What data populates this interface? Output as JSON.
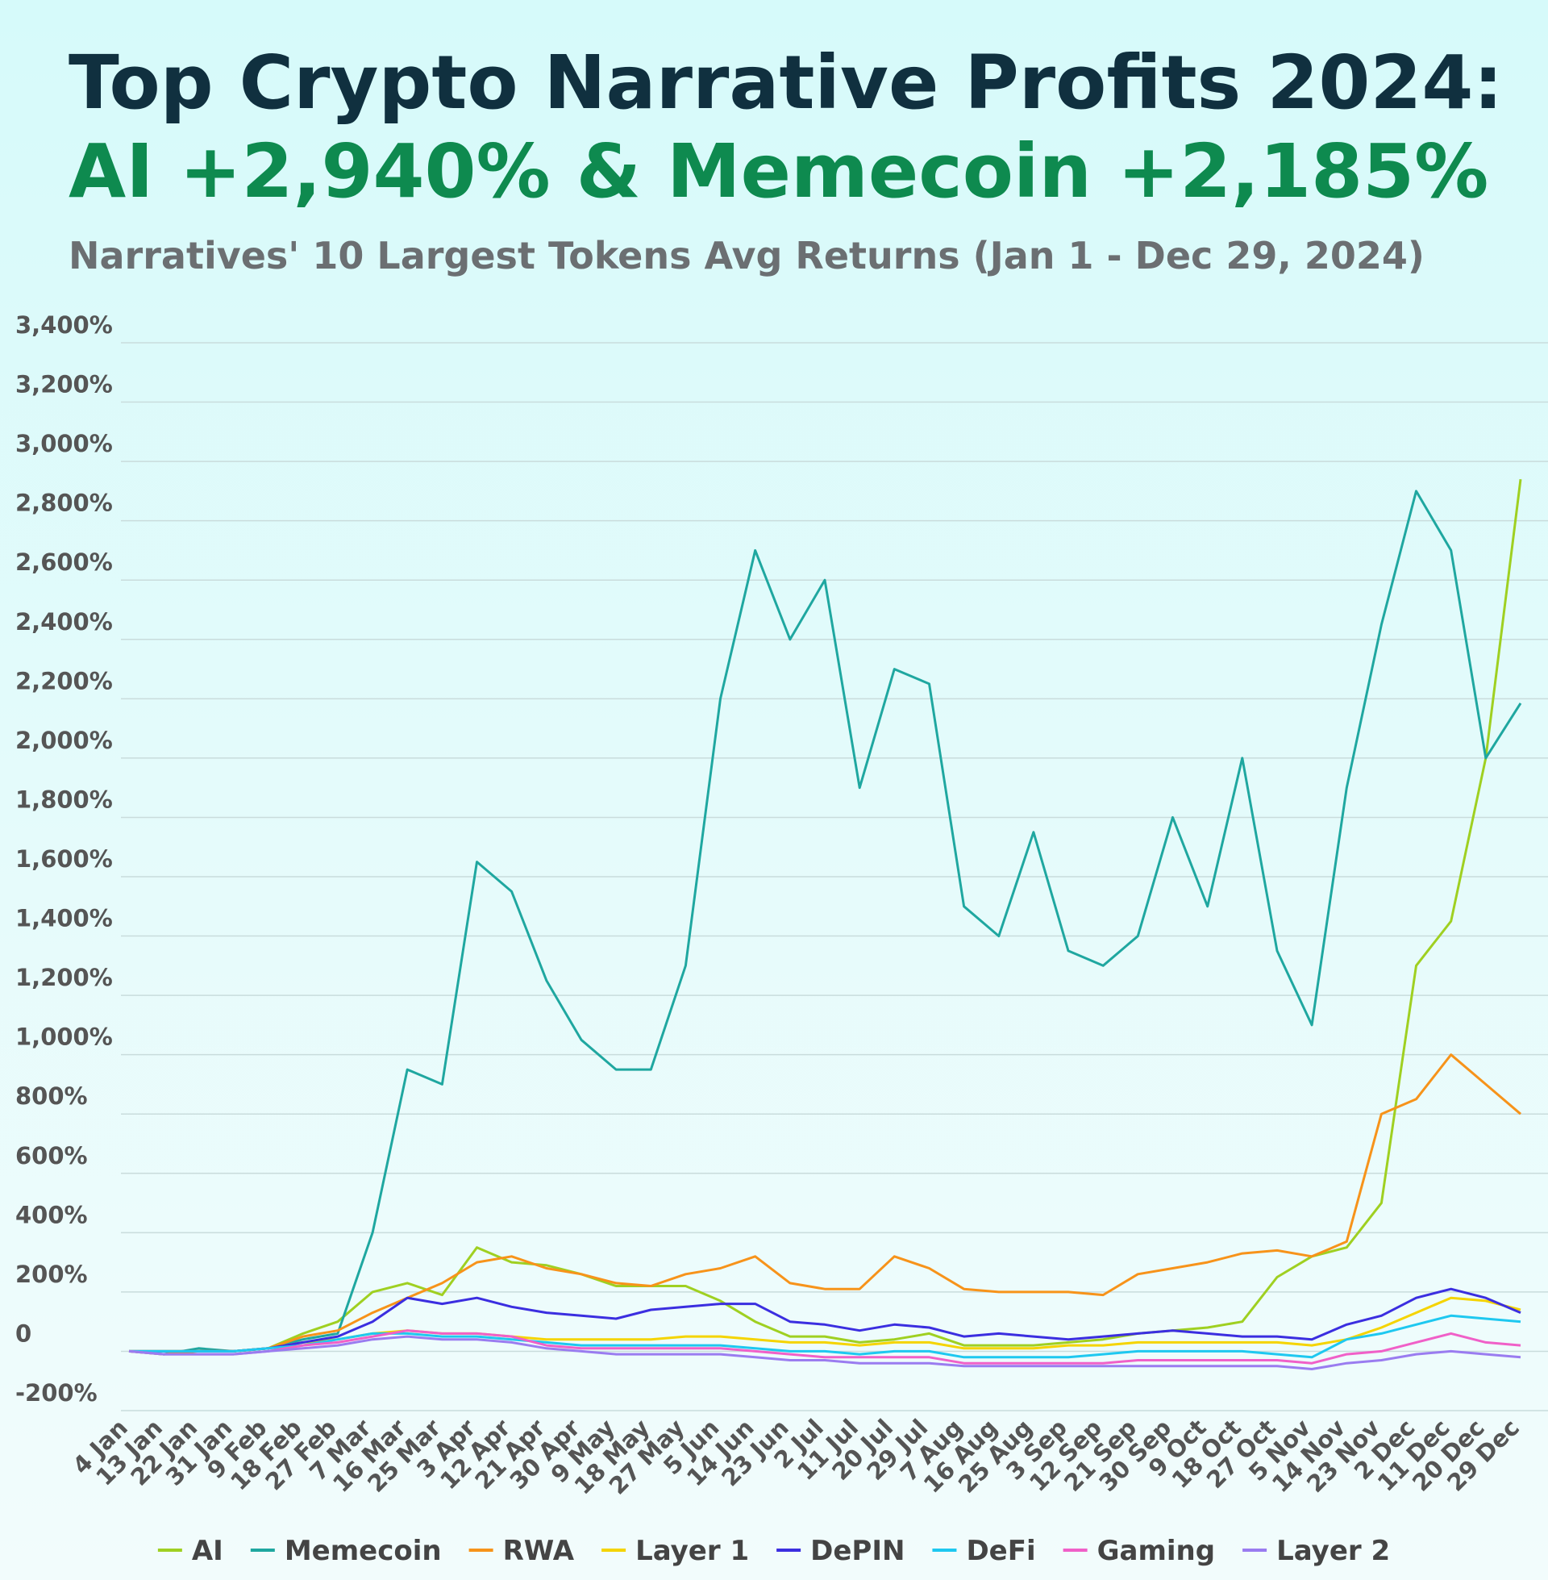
{
  "chart_data": {
    "type": "line",
    "title": "Top Crypto Narrative Profits 2024:",
    "headline": "AI +2,940% & Memecoin +2,185%",
    "subtitle": "Narratives' 10 Largest Tokens Avg Returns (Jan 1 - Dec 29, 2024)",
    "categories": [
      "4 Jan",
      "13 Jan",
      "22 Jan",
      "31 Jan",
      "9 Feb",
      "18 Feb",
      "27 Feb",
      "7 Mar",
      "16 Mar",
      "25 Mar",
      "3 Apr",
      "12 Apr",
      "21 Apr",
      "30 Apr",
      "9 May",
      "18 May",
      "27 May",
      "5 Jun",
      "14 Jun",
      "23 Jun",
      "2 Jul",
      "11 Jul",
      "20 Jul",
      "29 Jul",
      "7 Aug",
      "16 Aug",
      "25 Aug",
      "3 Sep",
      "12 Sep",
      "21 Sep",
      "30 Sep",
      "9 Oct",
      "18 Oct",
      "27 Oct",
      "5 Nov",
      "14 Nov",
      "23 Nov",
      "2 Dec",
      "11 Dec",
      "20 Dec",
      "29 Dec"
    ],
    "series": [
      {
        "name": "AI",
        "color": "#9fd021",
        "values": [
          0,
          0,
          0,
          0,
          10,
          60,
          100,
          200,
          230,
          190,
          350,
          300,
          290,
          260,
          220,
          220,
          220,
          170,
          100,
          50,
          50,
          30,
          40,
          60,
          20,
          20,
          20,
          30,
          40,
          60,
          70,
          80,
          100,
          250,
          320,
          350,
          500,
          1300,
          1450,
          2000,
          2940
        ]
      },
      {
        "name": "Memecoin",
        "color": "#1fa7a0",
        "values": [
          0,
          -10,
          10,
          0,
          10,
          40,
          60,
          400,
          950,
          900,
          1650,
          1550,
          1250,
          1050,
          950,
          950,
          1300,
          2200,
          2700,
          2400,
          2600,
          1900,
          2300,
          2250,
          1500,
          1400,
          1750,
          1350,
          1300,
          1400,
          1800,
          1500,
          2000,
          1350,
          1100,
          1900,
          2450,
          2900,
          2700,
          2000,
          2185
        ]
      },
      {
        "name": "RWA",
        "color": "#f7931a",
        "values": [
          0,
          -10,
          0,
          0,
          10,
          50,
          70,
          130,
          180,
          230,
          300,
          320,
          280,
          260,
          230,
          220,
          260,
          280,
          320,
          230,
          210,
          210,
          320,
          280,
          210,
          200,
          200,
          200,
          190,
          260,
          280,
          300,
          330,
          340,
          320,
          370,
          800,
          850,
          1000,
          900,
          800
        ]
      },
      {
        "name": "Layer 1",
        "color": "#f5d400",
        "values": [
          0,
          0,
          0,
          0,
          10,
          30,
          40,
          60,
          70,
          60,
          60,
          50,
          40,
          40,
          40,
          40,
          50,
          50,
          40,
          30,
          30,
          20,
          30,
          30,
          10,
          10,
          10,
          20,
          20,
          30,
          30,
          30,
          30,
          30,
          20,
          40,
          80,
          130,
          180,
          170,
          140
        ]
      },
      {
        "name": "DePIN",
        "color": "#3b2ee0",
        "values": [
          0,
          0,
          0,
          0,
          10,
          30,
          50,
          100,
          180,
          160,
          180,
          150,
          130,
          120,
          110,
          140,
          150,
          160,
          160,
          100,
          90,
          70,
          90,
          80,
          50,
          60,
          50,
          40,
          50,
          60,
          70,
          60,
          50,
          50,
          40,
          90,
          120,
          180,
          210,
          180,
          130
        ]
      },
      {
        "name": "DeFi",
        "color": "#1ec8f0",
        "values": [
          0,
          0,
          0,
          0,
          10,
          20,
          40,
          60,
          60,
          50,
          50,
          40,
          30,
          20,
          20,
          20,
          20,
          20,
          10,
          0,
          0,
          -10,
          0,
          0,
          -20,
          -20,
          -20,
          -20,
          -10,
          0,
          0,
          0,
          0,
          -10,
          -20,
          40,
          60,
          90,
          120,
          110,
          100
        ]
      },
      {
        "name": "Gaming",
        "color": "#f060c8",
        "values": [
          0,
          -10,
          -10,
          -10,
          0,
          20,
          30,
          50,
          70,
          60,
          60,
          50,
          20,
          10,
          10,
          10,
          10,
          10,
          0,
          -10,
          -20,
          -20,
          -20,
          -20,
          -40,
          -40,
          -40,
          -40,
          -40,
          -30,
          -30,
          -30,
          -30,
          -30,
          -40,
          -10,
          0,
          30,
          60,
          30,
          20
        ]
      },
      {
        "name": "Layer 2",
        "color": "#9a7cf0",
        "values": [
          0,
          -10,
          -10,
          -10,
          0,
          10,
          20,
          40,
          50,
          40,
          40,
          30,
          10,
          0,
          -10,
          -10,
          -10,
          -10,
          -20,
          -30,
          -30,
          -40,
          -40,
          -40,
          -50,
          -50,
          -50,
          -50,
          -50,
          -50,
          -50,
          -50,
          -50,
          -50,
          -60,
          -40,
          -30,
          -10,
          0,
          -10,
          -20
        ]
      }
    ],
    "ylim": [
      -200,
      3400
    ],
    "yticks": [
      {
        "value": -200,
        "label": "-200%"
      },
      0,
      {
        "value": 200,
        "label": "200%"
      },
      {
        "value": 400,
        "label": "400%"
      },
      {
        "value": 600,
        "label": "600%"
      },
      {
        "value": 800,
        "label": "800%"
      },
      {
        "value": 1000,
        "label": "1,000%"
      },
      {
        "value": 1200,
        "label": "1,200%"
      },
      {
        "value": 1400,
        "label": "1,400%"
      },
      {
        "value": 1600,
        "label": "1,600%"
      },
      {
        "value": 1800,
        "label": "1,800%"
      },
      {
        "value": 2000,
        "label": "2,000%"
      },
      {
        "value": 2200,
        "label": "2,200%"
      },
      {
        "value": 2400,
        "label": "2,400%"
      },
      {
        "value": 2600,
        "label": "2,600%"
      },
      {
        "value": 2800,
        "label": "2,800%"
      },
      {
        "value": 3000,
        "label": "3,000%"
      },
      {
        "value": 3200,
        "label": "3,200%"
      },
      {
        "value": 3400,
        "label": "3,400%"
      }
    ],
    "grid": true,
    "legend": "bottom"
  }
}
